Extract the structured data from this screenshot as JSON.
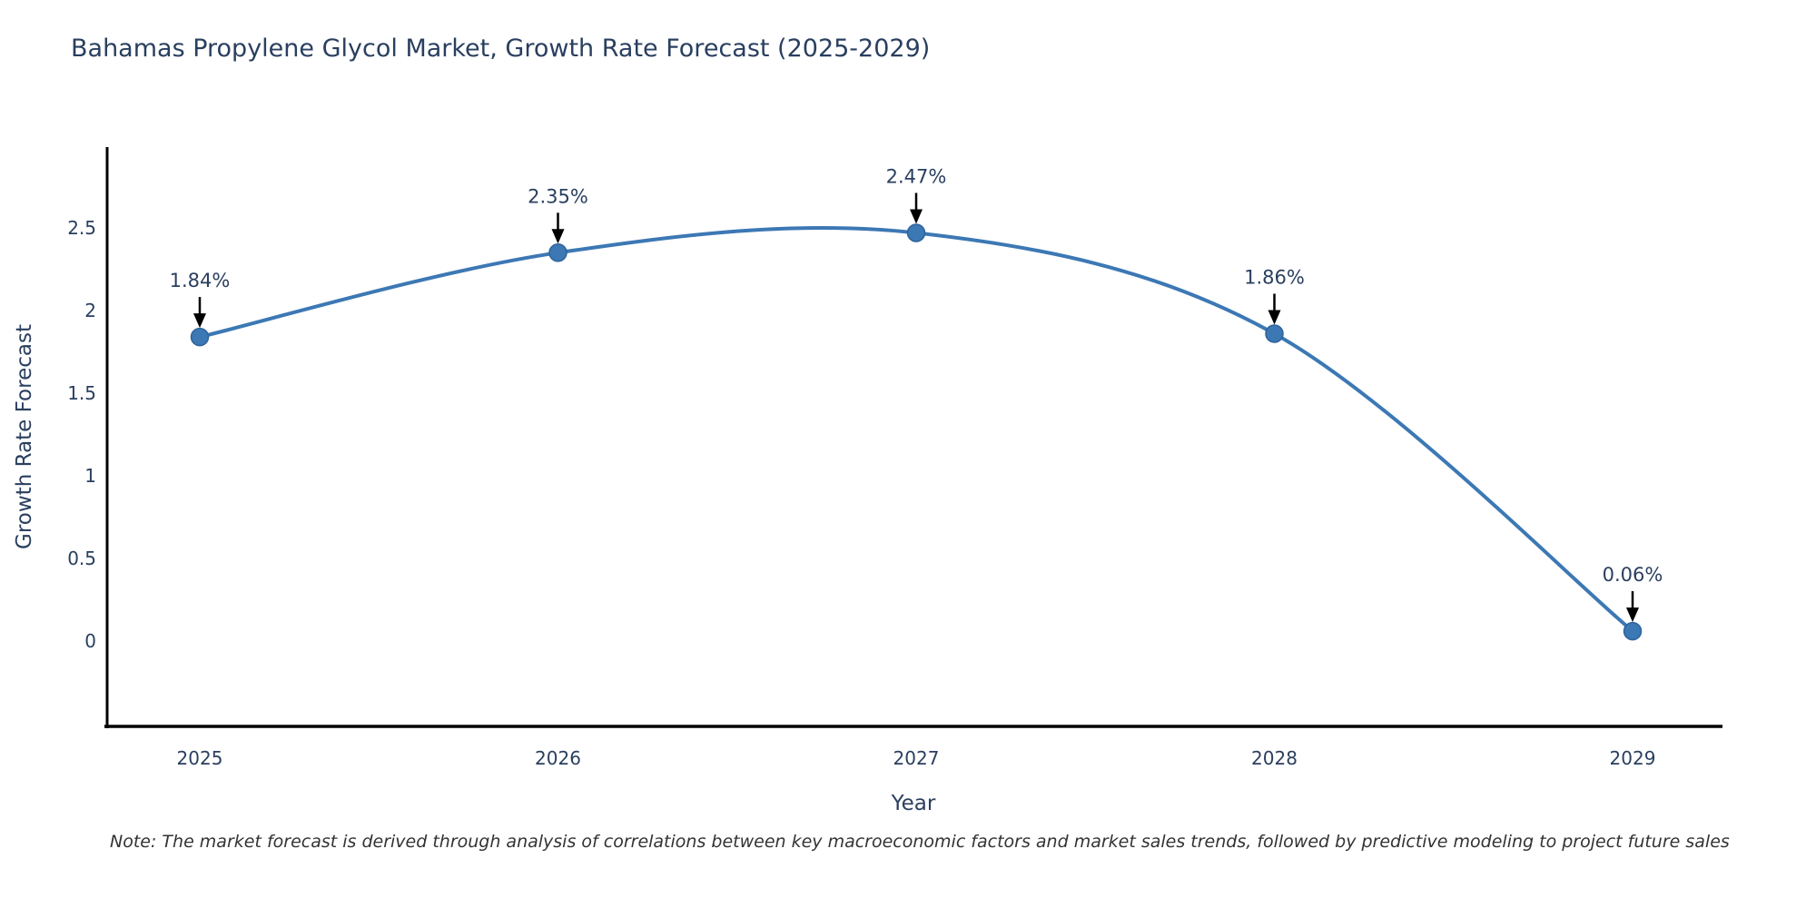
{
  "title": "Bahamas Propylene Glycol Market, Growth Rate Forecast (2025-2029)",
  "note": "Note: The market forecast is derived through analysis of correlations between key macroeconomic factors and market sales trends, followed by predictive modeling to project future sales",
  "chart_data": {
    "type": "line",
    "title": "Bahamas Propylene Glycol Market, Growth Rate Forecast (2025-2029)",
    "x": [
      2025,
      2026,
      2027,
      2028,
      2029
    ],
    "categories": [
      "2025",
      "2026",
      "2027",
      "2028",
      "2029"
    ],
    "values": [
      1.84,
      2.35,
      2.47,
      1.86,
      0.06
    ],
    "point_labels": [
      "1.84%",
      "2.35%",
      "2.47%",
      "1.86%",
      "0.06%"
    ],
    "xlabel": "Year",
    "ylabel": "Growth Rate Forecast",
    "yticks": [
      0,
      0.5,
      1,
      1.5,
      2,
      2.5
    ],
    "ylim": [
      -0.55,
      3.0
    ],
    "grid": false,
    "legend_visible": false,
    "line_shape": "spline",
    "colors": {
      "line": "#3c78b4",
      "marker_fill": "#3c78b4",
      "marker_edge": "#2f639b",
      "axis_line": "#000000",
      "tick_text": "#2a3f5f",
      "annotation_text": "#2a3f5f",
      "annotation_arrow": "#000000",
      "background": "#ffffff"
    }
  }
}
